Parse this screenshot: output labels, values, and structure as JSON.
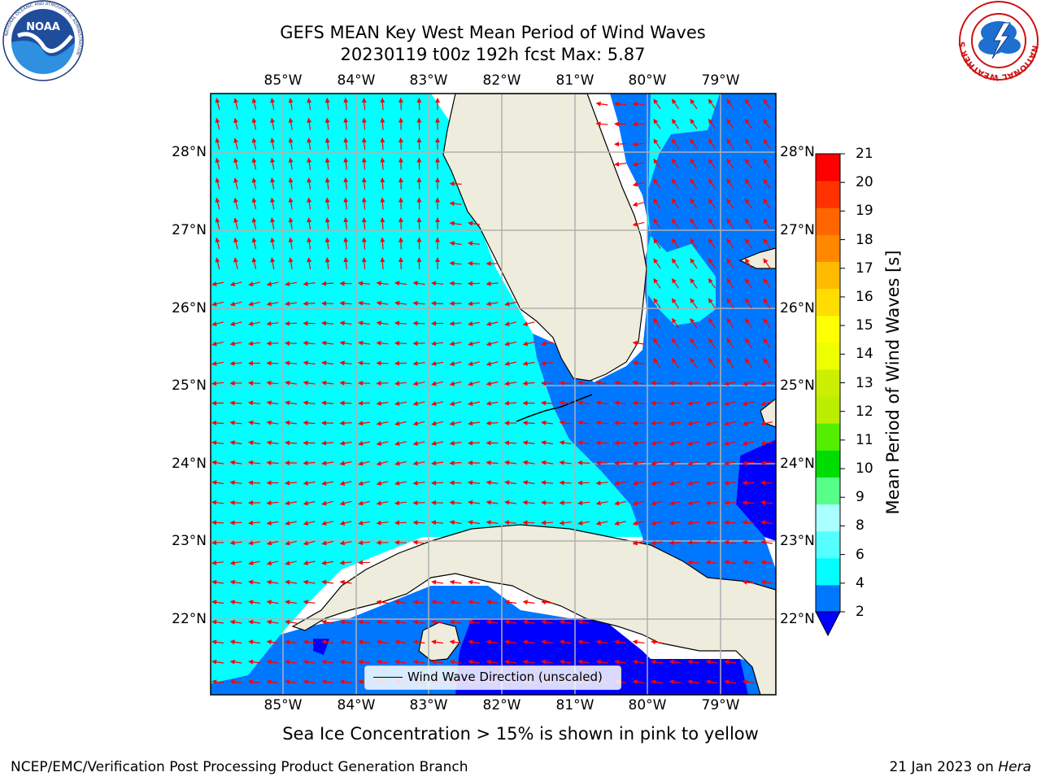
{
  "header": {
    "title_line1": "GEFS MEAN Key West Mean Period of Wind Waves",
    "title_line2": "20230119 t00z 192h fcst   Max: 5.87"
  },
  "logos": {
    "noaa_label": "NOAA",
    "noaa_ring_text": "NATIONAL OCEANIC AND ATMOSPHERIC ADMINISTRATION",
    "noaa_ring_text_bottom": "U.S. DEPARTMENT OF COMMERCE",
    "nws_ring_text": "NATIONAL WEATHER SERVICE"
  },
  "map": {
    "lon_labels": [
      "85°W",
      "84°W",
      "83°W",
      "82°W",
      "81°W",
      "80°W",
      "79°W"
    ],
    "lat_labels": [
      "28°N",
      "27°N",
      "26°N",
      "25°N",
      "24°N",
      "23°N",
      "22°N"
    ],
    "extent": {
      "lon": [
        -86.0,
        -78.25
      ],
      "lat": [
        21.05,
        28.8
      ]
    },
    "colors": {
      "land": "#eeecdc",
      "coast": "#000000",
      "grid": "#b0b0b0",
      "vector": "#ff0000"
    },
    "legend_label": "Wind Wave Direction (unscaled)",
    "field_description": "Mean period mostly 4-6 s (cyan) across the Gulf, 2-4 s (blue) in the Atlantic and Straits, below 2 s (dark blue) south of Cuba and near the Bahamas"
  },
  "colorbar": {
    "label": "Mean Period of Wind Waves [s]",
    "ticks": [
      "2",
      "4",
      "6",
      "8",
      "9",
      "10",
      "11",
      "12",
      "13",
      "14",
      "15",
      "16",
      "17",
      "18",
      "19",
      "20",
      "21"
    ],
    "under_color": "#0000ff",
    "colors": [
      "#0077ff",
      "#00ffff",
      "#55ffff",
      "#aaffff",
      "#55ff88",
      "#00dd00",
      "#55ee00",
      "#bbee00",
      "#ccee00",
      "#eeff00",
      "#ffff00",
      "#ffdd00",
      "#ffbb00",
      "#ff8800",
      "#ff6600",
      "#ff3300",
      "#ff0000"
    ]
  },
  "caption": "Sea Ice Concentration > 15% is shown in pink to yellow",
  "footer": {
    "left": "NCEP/EMC/Verification Post Processing Product Generation Branch",
    "right_prefix": "21 Jan 2023 on ",
    "right_machine": "Hera"
  }
}
